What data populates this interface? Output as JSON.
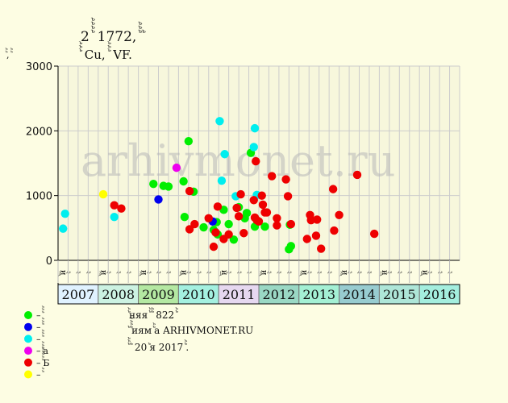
{
  "chart_data": {
    "type": "scatter",
    "title": "2 ꙸꙸꙸꙸ 1772, ꙸꙸꙸ ꙸ",
    "subtitle": "ꙸꙸꙸ Cu, ꙸꙸꙸ VF.",
    "ylabel": "ꙸꙸ, ꙸꙸ",
    "ylim": [
      0,
      3000
    ],
    "yticks": [
      0,
      1000,
      2000,
      3000
    ],
    "grid": true,
    "years": [
      "2007",
      "2008",
      "2009",
      "2010",
      "2011",
      "2012",
      "2013",
      "2014",
      "2015",
      "2016"
    ],
    "year_colors": [
      "#e0f2ff",
      "#ccf2e2",
      "#b4e8a2",
      "#a4f0e0",
      "#e6d8f0",
      "#9ad8c4",
      "#a4f0d4",
      "#98ccd0",
      "#aee6d8",
      "#a4eede"
    ],
    "quarter_labels": [
      "ꙸй",
      "ꙸꙸ",
      "ꙸꙸ",
      "ꙸꙸ"
    ],
    "series": [
      {
        "name": "ꙸꙸꙸ",
        "color": "#00ee00",
        "points": [
          [
            9.5,
            1180
          ],
          [
            10.5,
            1150
          ],
          [
            11,
            1140
          ],
          [
            12.5,
            1220
          ],
          [
            12.6,
            670
          ],
          [
            13,
            1840
          ],
          [
            13.5,
            1060
          ],
          [
            14.5,
            510
          ],
          [
            15.5,
            470
          ],
          [
            15.8,
            590
          ],
          [
            15.9,
            400
          ],
          [
            16.5,
            780
          ],
          [
            17,
            560
          ],
          [
            17.5,
            320
          ],
          [
            18,
            820
          ],
          [
            18.8,
            730
          ],
          [
            18.6,
            650
          ],
          [
            19.2,
            1660
          ],
          [
            19.6,
            520
          ],
          [
            20.6,
            520
          ],
          [
            23,
            170
          ],
          [
            23.2,
            220
          ],
          [
            23.1,
            550
          ]
        ]
      },
      {
        "name": "ꙸꙸꙸ",
        "color": "#0000ee",
        "points": [
          [
            10,
            940
          ],
          [
            15.4,
            600
          ]
        ]
      },
      {
        "name": "ꙸꙸꙸ",
        "color": "#00eeee",
        "points": [
          [
            0.5,
            490
          ],
          [
            0.7,
            720
          ],
          [
            5.6,
            670
          ],
          [
            16.1,
            2150
          ],
          [
            16.6,
            1640
          ],
          [
            16.3,
            1230
          ],
          [
            17.7,
            990
          ],
          [
            19.6,
            2040
          ],
          [
            19.8,
            1010
          ],
          [
            19.5,
            1750
          ]
        ]
      },
      {
        "name": "ꙸꙸꙸа",
        "color": "#ee00ee",
        "points": [
          [
            11.8,
            1430
          ]
        ]
      },
      {
        "name": "ꙸꙸꙸꙸꙸБ",
        "color": "#ee0000",
        "points": [
          [
            5.6,
            850
          ],
          [
            6.3,
            800
          ],
          [
            13.1,
            1070
          ],
          [
            13.1,
            480
          ],
          [
            13.6,
            560
          ],
          [
            15,
            650
          ],
          [
            15.5,
            210
          ],
          [
            15.7,
            430
          ],
          [
            15.9,
            830
          ],
          [
            16.5,
            330
          ],
          [
            17,
            400
          ],
          [
            17.8,
            810
          ],
          [
            18,
            680
          ],
          [
            18.2,
            1020
          ],
          [
            18.5,
            420
          ],
          [
            19.5,
            930
          ],
          [
            19.7,
            1530
          ],
          [
            19.6,
            660
          ],
          [
            19.8,
            620
          ],
          [
            20,
            600
          ],
          [
            20.3,
            1000
          ],
          [
            20.4,
            860
          ],
          [
            20.6,
            740
          ],
          [
            20.8,
            740
          ],
          [
            21.3,
            1300
          ],
          [
            21.8,
            650
          ],
          [
            21.8,
            540
          ],
          [
            22.7,
            1250
          ],
          [
            22.9,
            990
          ],
          [
            23.2,
            560
          ],
          [
            24.8,
            330
          ],
          [
            25.1,
            700
          ],
          [
            25.2,
            620
          ],
          [
            25.7,
            380
          ],
          [
            25.8,
            630
          ],
          [
            26.2,
            180
          ],
          [
            27.4,
            1100
          ],
          [
            27.5,
            460
          ],
          [
            28,
            700
          ],
          [
            29.8,
            1320
          ],
          [
            31.5,
            410
          ]
        ]
      },
      {
        "name": "ꙸꙸ",
        "color": "#ffff00",
        "points": [
          [
            4.5,
            1020
          ]
        ]
      }
    ]
  },
  "watermark": "arhivmonet.ru",
  "notes": [
    "ꙸꙸняя ꙸꙸ ꙸꙸ 822 ꙸꙸ",
    "ꙸ ꙸꙸꙸꙸиям ꙸꙸа ARHIVMONET.RU",
    "ꙸꙸꙸ ꙸ 20 ꙸя 2017 ꙸꙸ."
  ]
}
